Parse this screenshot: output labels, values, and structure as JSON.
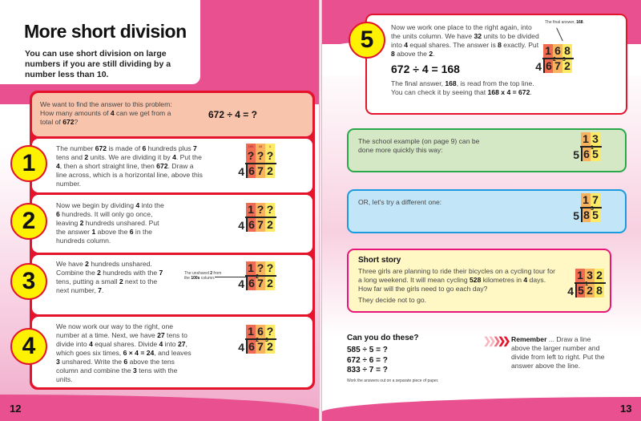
{
  "left": {
    "title": "More short division",
    "subtitle": "You can use short division on large numbers if you are still dividing by a number less than 10.",
    "intro": [
      {
        "t": "We want to find the answer to this problem: How many amounts of "
      },
      {
        "t": "4",
        "b": 1
      },
      {
        "t": " can we get from a total of "
      },
      {
        "t": "672",
        "b": 1
      },
      {
        "t": "?"
      }
    ],
    "intro_equation": "672 ÷ 4 = ?",
    "steps": [
      {
        "number": "1",
        "text": [
          {
            "t": "The number "
          },
          {
            "t": "672",
            "b": 1
          },
          {
            "t": " is made of "
          },
          {
            "t": "6",
            "b": 1
          },
          {
            "t": " hundreds plus "
          },
          {
            "t": "7",
            "b": 1
          },
          {
            "t": " tens and "
          },
          {
            "t": "2",
            "b": 1
          },
          {
            "t": " units. We are dividing it by "
          },
          {
            "t": "4",
            "b": 1
          },
          {
            "t": ". Put the "
          },
          {
            "t": "4",
            "b": 1
          },
          {
            "t": ", then a short straight line, then "
          },
          {
            "t": "672",
            "b": 1
          },
          {
            "t": ". Draw a line across, which is a horizontal line, above this number."
          }
        ]
      },
      {
        "number": "2",
        "text": [
          {
            "t": "Now we begin by dividing "
          },
          {
            "t": "4",
            "b": 1
          },
          {
            "t": " into the "
          },
          {
            "t": "6",
            "b": 1
          },
          {
            "t": " hundreds. It will only go once, leaving "
          },
          {
            "t": "2",
            "b": 1
          },
          {
            "t": " hundreds unshared. Put the answer "
          },
          {
            "t": "1",
            "b": 1
          },
          {
            "t": " above the "
          },
          {
            "t": "6",
            "b": 1
          },
          {
            "t": " in the hundreds column."
          }
        ]
      },
      {
        "number": "3",
        "text": [
          {
            "t": "We have "
          },
          {
            "t": "2",
            "b": 1
          },
          {
            "t": " hundreds unshared. Combine the "
          },
          {
            "t": "2",
            "b": 1
          },
          {
            "t": " hundreds with the "
          },
          {
            "t": "7",
            "b": 1
          },
          {
            "t": " tens, putting a small "
          },
          {
            "t": "2",
            "b": 1
          },
          {
            "t": " next to the next number, "
          },
          {
            "t": "7",
            "b": 1
          },
          {
            "t": "."
          }
        ],
        "note": [
          {
            "t": "The unshared "
          },
          {
            "t": "2",
            "b": 1
          },
          {
            "t": " from the "
          },
          {
            "t": "100s",
            "b": 1
          },
          {
            "t": " column."
          }
        ]
      },
      {
        "number": "4",
        "text": [
          {
            "t": "We now work our way to the right, one number at a time. Next, we have "
          },
          {
            "t": "27",
            "b": 1
          },
          {
            "t": " tens to divide into "
          },
          {
            "t": "4",
            "b": 1
          },
          {
            "t": " equal shares. Divide "
          },
          {
            "t": "4",
            "b": 1
          },
          {
            "t": " into "
          },
          {
            "t": "27",
            "b": 1
          },
          {
            "t": ", which goes six times, "
          },
          {
            "t": "6 × 4 = 24",
            "b": 1
          },
          {
            "t": ", and leaves "
          },
          {
            "t": "3",
            "b": 1
          },
          {
            "t": " unshared. Write the "
          },
          {
            "t": "6",
            "b": 1
          },
          {
            "t": " above the tens column and combine the "
          },
          {
            "t": "3",
            "b": 1
          },
          {
            "t": " tens with the units."
          }
        ]
      }
    ],
    "page_number": "12"
  },
  "right": {
    "step5": {
      "number": "5",
      "text": [
        {
          "t": "Now we work one place to the right again, into the units column. We have "
        },
        {
          "t": "32",
          "b": 1
        },
        {
          "t": " units to be divided into "
        },
        {
          "t": "4",
          "b": 1
        },
        {
          "t": " equal shares. The answer is "
        },
        {
          "t": "8",
          "b": 1
        },
        {
          "t": " exactly. Put "
        },
        {
          "t": "8",
          "b": 1
        },
        {
          "t": " above the "
        },
        {
          "t": "2",
          "b": 1
        },
        {
          "t": "."
        }
      ],
      "equation": "672 ÷ 4 = 168",
      "text2": [
        {
          "t": "The final answer, "
        },
        {
          "t": "168",
          "b": 1
        },
        {
          "t": ", is read from the top line. You can check it by seeing that "
        },
        {
          "t": "168 x 4 = 672",
          "b": 1
        },
        {
          "t": "."
        }
      ],
      "note": [
        {
          "t": "The final answer, "
        },
        {
          "t": "168",
          "b": 1
        },
        {
          "t": "."
        }
      ]
    },
    "school_example": "The school example (on page 9) can be done more quickly this way:",
    "different_one": "OR, let's try a different one:",
    "story": {
      "title": "Short story",
      "text": [
        {
          "t": "Three girls are planning to ride their bicycles on a cycling tour for a long weekend. It will mean cycling "
        },
        {
          "t": "528",
          "b": 1
        },
        {
          "t": " kilometres in "
        },
        {
          "t": "4",
          "b": 1
        },
        {
          "t": " days. How far will the girls need to go each day?"
        }
      ],
      "punchline": "They decide not to go."
    },
    "exercises": {
      "title": "Can you do these?",
      "items": [
        "585 ÷ 5 = ?",
        "672 ÷ 6 = ?",
        "833 ÷ 7 = ?"
      ],
      "footnote": "Work the answers out on a separate piece of paper."
    },
    "remember": [
      {
        "t": "Remember",
        "b": 1
      },
      {
        "t": " ... Draw a line above the larger number and divide from left to right. Put the answer above the line."
      }
    ],
    "page_number": "13"
  },
  "divisions": {
    "step1": {
      "divisor": "4",
      "quotient": [
        "?",
        "?",
        "?"
      ],
      "dividend": [
        "6",
        "7",
        "2"
      ],
      "carries": [
        "",
        "",
        ""
      ],
      "place_values": [
        "100",
        "10",
        "1"
      ]
    },
    "step2": {
      "divisor": "4",
      "quotient": [
        "1",
        "?",
        "?"
      ],
      "dividend": [
        "6",
        "7",
        "2"
      ],
      "carries": [
        "",
        "",
        ""
      ]
    },
    "step3": {
      "divisor": "4",
      "quotient": [
        "1",
        "?",
        "?"
      ],
      "dividend": [
        "6",
        "7",
        "2"
      ],
      "carries": [
        "",
        "2",
        ""
      ]
    },
    "step4": {
      "divisor": "4",
      "quotient": [
        "1",
        "6",
        "?"
      ],
      "dividend": [
        "6",
        "7",
        "2"
      ],
      "carries": [
        "",
        "2",
        "3"
      ]
    },
    "step5": {
      "divisor": "4",
      "quotient": [
        "1",
        "6",
        "8"
      ],
      "dividend": [
        "6",
        "7",
        "2"
      ],
      "carries": [
        "",
        "2",
        "3"
      ]
    },
    "school": {
      "divisor": "5",
      "quotient": [
        "1",
        "3"
      ],
      "dividend": [
        "6",
        "5"
      ],
      "carries": [
        "",
        "1"
      ]
    },
    "different": {
      "divisor": "5",
      "quotient": [
        "1",
        "7"
      ],
      "dividend": [
        "8",
        "5"
      ],
      "carries": [
        "",
        "3"
      ]
    },
    "story": {
      "divisor": "4",
      "quotient": [
        "1",
        "3",
        "2"
      ],
      "dividend": [
        "5",
        "2",
        "8"
      ],
      "carries": [
        "",
        "1",
        ""
      ]
    }
  },
  "colors": {
    "hundreds": "#ef6b52",
    "tens": "#f8b35c",
    "units": "#fdea66",
    "red": "#e3142b",
    "pink_band": "#e8508f",
    "circle": "#fff200",
    "intro_bg": "#f8c4ac",
    "green": "#2aa84a",
    "green_bg": "#d5e8c6",
    "blue": "#1a9be0",
    "blue_bg": "#c2e6f8",
    "story_border": "#e8157a",
    "story_bg": "#fff8c4"
  }
}
